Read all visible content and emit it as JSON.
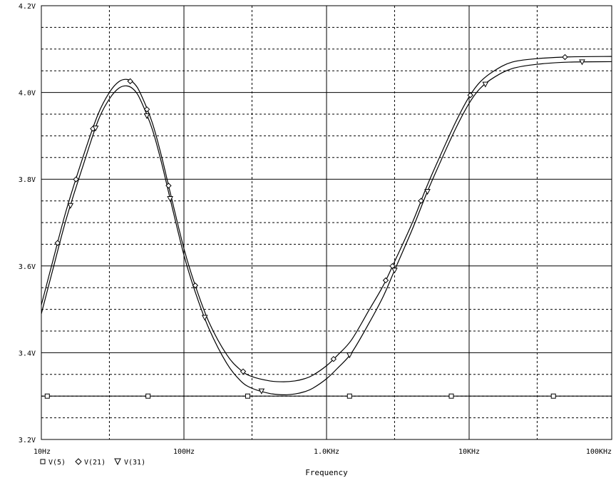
{
  "chart_data": {
    "type": "line",
    "title": "",
    "xlabel": "Frequency",
    "ylabel": "",
    "x_scale": "log",
    "xlim": [
      10,
      100000
    ],
    "ylim": [
      3.2,
      4.2
    ],
    "grid": true,
    "x_ticks": [
      {
        "value": 10,
        "label": "10Hz"
      },
      {
        "value": 100,
        "label": "100Hz"
      },
      {
        "value": 1000,
        "label": "1.0KHz"
      },
      {
        "value": 10000,
        "label": "10KHz"
      },
      {
        "value": 100000,
        "label": "100KHz"
      }
    ],
    "y_ticks": [
      {
        "value": 3.2,
        "label": "3.2V"
      },
      {
        "value": 3.4,
        "label": "3.4V"
      },
      {
        "value": 3.6,
        "label": "3.6V"
      },
      {
        "value": 3.8,
        "label": "3.8V"
      },
      {
        "value": 4.0,
        "label": "4.0V"
      },
      {
        "value": 4.2,
        "label": "4.2V"
      }
    ],
    "legend_position": "bottom-left",
    "series": [
      {
        "name": "V(5)",
        "marker": "square",
        "x": [
          10,
          100000
        ],
        "y": [
          3.3,
          3.3
        ],
        "marker_x": [
          11,
          56,
          280,
          1450,
          7500,
          39000
        ]
      },
      {
        "name": "V(21)",
        "marker": "diamond",
        "x": [
          10,
          12,
          15,
          20,
          25,
          30,
          35,
          40,
          45,
          50,
          60,
          70,
          80,
          100,
          120,
          150,
          200,
          250,
          300,
          400,
          500,
          600,
          700,
          800,
          1000,
          1200,
          1500,
          2000,
          2500,
          3000,
          4000,
          5000,
          6000,
          8000,
          10000,
          12000,
          15000,
          20000,
          30000,
          50000,
          100000
        ],
        "y": [
          3.51,
          3.61,
          3.73,
          3.86,
          3.95,
          4.0,
          4.025,
          4.03,
          4.02,
          3.995,
          3.93,
          3.85,
          3.77,
          3.64,
          3.555,
          3.47,
          3.395,
          3.36,
          3.345,
          3.335,
          3.333,
          3.335,
          3.34,
          3.348,
          3.37,
          3.395,
          3.43,
          3.5,
          3.555,
          3.61,
          3.7,
          3.78,
          3.84,
          3.93,
          3.99,
          4.025,
          4.05,
          4.07,
          4.078,
          4.082,
          4.083
        ]
      },
      {
        "name": "V(31)",
        "marker": "triangle-down",
        "x": [
          10,
          12,
          15,
          20,
          25,
          30,
          35,
          40,
          45,
          50,
          60,
          70,
          80,
          100,
          120,
          150,
          200,
          250,
          300,
          400,
          500,
          600,
          700,
          800,
          1000,
          1200,
          1500,
          2000,
          2500,
          3000,
          4000,
          5000,
          6000,
          8000,
          10000,
          12000,
          15000,
          20000,
          30000,
          50000,
          100000
        ],
        "y": [
          3.49,
          3.59,
          3.71,
          3.84,
          3.935,
          3.985,
          4.01,
          4.015,
          4.005,
          3.98,
          3.915,
          3.835,
          3.755,
          3.625,
          3.54,
          3.455,
          3.375,
          3.335,
          3.318,
          3.306,
          3.303,
          3.305,
          3.31,
          3.318,
          3.34,
          3.365,
          3.4,
          3.47,
          3.53,
          3.59,
          3.685,
          3.765,
          3.825,
          3.915,
          3.975,
          4.01,
          4.035,
          4.055,
          4.065,
          4.07,
          4.071
        ]
      }
    ]
  },
  "legend": {
    "v5": "V(5)",
    "v21": "V(21)",
    "v31": "V(31)"
  }
}
